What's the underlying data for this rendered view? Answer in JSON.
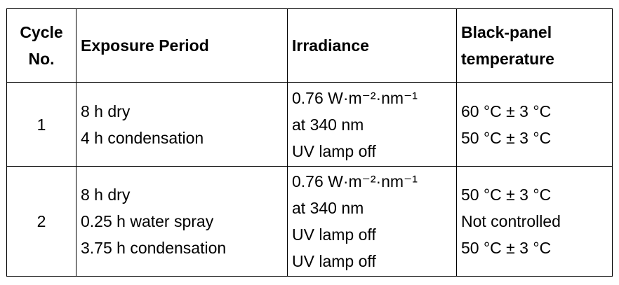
{
  "table": {
    "header": [
      [
        "Cycle",
        "No."
      ],
      [
        "Exposure Period"
      ],
      [
        "Irradiance"
      ],
      [
        "Black-panel",
        "temperature"
      ]
    ],
    "rows": [
      [
        [
          "1"
        ],
        [
          "8 h dry",
          "4 h condensation"
        ],
        [
          "0.76 W·m⁻²·nm⁻¹",
          "at 340 nm",
          "UV lamp off"
        ],
        [
          "60 °C ± 3 °C",
          "50 °C ± 3 °C"
        ]
      ],
      [
        [
          "2"
        ],
        [
          "8 h dry",
          "0.25 h water spray",
          "3.75 h condensation"
        ],
        [
          "0.76 W·m⁻²·nm⁻¹",
          "at 340 nm",
          "UV lamp off",
          "UV lamp off"
        ],
        [
          "50 °C ± 3 °C",
          "Not controlled",
          "50 °C ± 3 °C"
        ]
      ]
    ]
  }
}
